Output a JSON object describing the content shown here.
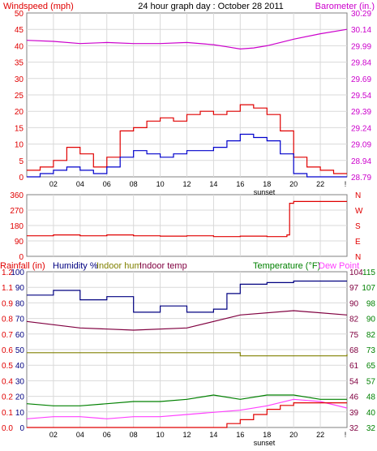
{
  "header": {
    "left_title": "Windspeed (mph)",
    "center_title": "24 hour graph day : October 28 2011",
    "right_title": "Barometer (in.)"
  },
  "colors": {
    "frame": "#808080",
    "grid": "#d9d9d9",
    "red": "#e00000",
    "blue": "#0000cc",
    "magenta": "#cc00cc",
    "maroon": "#800040",
    "olive": "#808000",
    "green": "#008000",
    "pink": "#ff40ff",
    "navy": "#000080",
    "teal": "#008080"
  },
  "x_axis": {
    "ticks": [
      "02",
      "04",
      "06",
      "08",
      "10",
      "12",
      "14",
      "16",
      "18",
      "20",
      "22"
    ],
    "sunset_label": "sunset",
    "end_mark": "!"
  },
  "top_panel": {
    "left_ticks": [
      "50",
      "45",
      "40",
      "35",
      "30",
      "25",
      "20",
      "15",
      "10",
      "5",
      "0"
    ],
    "right_ticks": [
      "30.29",
      "30.14",
      "29.99",
      "29.84",
      "29.69",
      "29.54",
      "29.39",
      "29.24",
      "29.09",
      "28.94",
      "28.79"
    ]
  },
  "wind_panel": {
    "left_ticks": [
      "360",
      "270",
      "180",
      "90",
      "0"
    ],
    "right_labels": [
      "N",
      "W",
      "S",
      "E",
      "N"
    ]
  },
  "bottom_panel": {
    "header_rainfall": "Rainfall (in)",
    "header_humidity": "Humidity %",
    "header_indoor_hum": "Indoor hum",
    "header_indoor_temp": "Indoor temp",
    "header_temperature": "Temperature (°F)",
    "header_dew_point": "Dew Point",
    "rain_ticks": [
      "1.2",
      "1.1",
      "0.9",
      "0.8",
      "0.7",
      "0.6",
      "0.5",
      "0.4",
      "0.2",
      "0.1",
      "0.0"
    ],
    "humidity_ticks": [
      "100",
      "90",
      "80",
      "70",
      "60",
      "50",
      "40",
      "30",
      "20",
      "10",
      "0"
    ],
    "temp_right1_ticks": [
      "104",
      "97",
      "90",
      "82",
      "75",
      "68",
      "61",
      "54",
      "46",
      "39",
      "32"
    ],
    "temp_right2_ticks": [
      "115",
      "107",
      "98",
      "90",
      "82",
      "73",
      "65",
      "57",
      "48",
      "40",
      "32"
    ]
  },
  "chart_data": [
    {
      "type": "line",
      "title": "24 hour graph day : October 28 2011",
      "x_ticks": [
        "02",
        "04",
        "06",
        "08",
        "10",
        "12",
        "14",
        "16",
        "18",
        "20",
        "22"
      ],
      "y_left_label": "Windspeed (mph)",
      "y_left_range": [
        0,
        50
      ],
      "y_right_label": "Barometer (in.)",
      "y_right_range": [
        28.79,
        30.29
      ],
      "series": [
        {
          "name": "Windspeed (mph)",
          "color": "red",
          "axis": "left",
          "x": [
            0,
            1,
            2,
            3,
            4,
            5,
            6,
            7,
            8,
            9,
            10,
            11,
            12,
            13,
            14,
            15,
            16,
            17,
            18,
            19,
            20,
            21,
            22,
            23,
            24
          ],
          "values": [
            2,
            3,
            5,
            9,
            7,
            3,
            6,
            14,
            15,
            17,
            18,
            17,
            19,
            20,
            19,
            20,
            22,
            21,
            19,
            14,
            6,
            3,
            2,
            1,
            1
          ]
        },
        {
          "name": "Gust",
          "color": "blue",
          "axis": "left",
          "x": [
            0,
            1,
            2,
            3,
            4,
            5,
            6,
            7,
            8,
            9,
            10,
            11,
            12,
            13,
            14,
            15,
            16,
            17,
            18,
            19,
            20,
            21,
            22,
            23,
            24
          ],
          "values": [
            0,
            1,
            2,
            3,
            2,
            1,
            3,
            6,
            8,
            7,
            6,
            7,
            8,
            8,
            9,
            11,
            13,
            12,
            11,
            7,
            1,
            0,
            0,
            0,
            0
          ]
        },
        {
          "name": "Barometer (in.)",
          "color": "magenta",
          "axis": "right",
          "x": [
            0,
            2,
            4,
            6,
            8,
            10,
            12,
            14,
            15,
            16,
            17,
            18,
            19,
            20,
            22,
            24
          ],
          "values": [
            30.04,
            30.03,
            30.01,
            30.02,
            30.01,
            30.01,
            30.02,
            30.0,
            29.98,
            29.96,
            29.97,
            29.99,
            30.02,
            30.05,
            30.1,
            30.14
          ]
        }
      ]
    },
    {
      "type": "scatter",
      "title": "",
      "y_range": [
        0,
        360
      ],
      "y_ticks": [
        "360",
        "270",
        "180",
        "90",
        "0"
      ],
      "series": [
        {
          "name": "Wind direction",
          "color": "red",
          "x": [
            0,
            2,
            4,
            6,
            8,
            10,
            12,
            14,
            16,
            18,
            19.5,
            19.7,
            20,
            22,
            24
          ],
          "values": [
            120,
            125,
            120,
            125,
            120,
            118,
            120,
            115,
            118,
            115,
            125,
            310,
            320,
            320,
            320
          ]
        }
      ]
    },
    {
      "type": "line",
      "title": "",
      "y_left_label": "Rainfall (in)",
      "y_left_range": [
        0.0,
        1.2
      ],
      "y_right_label": "Temperature (°F)",
      "y_right_range": [
        32,
        104
      ],
      "series": [
        {
          "name": "Humidity %",
          "color": "navy",
          "axis": "humidity",
          "x": [
            0,
            2,
            4,
            6,
            8,
            10,
            12,
            14,
            15,
            16,
            18,
            20,
            24
          ],
          "values": [
            85,
            88,
            82,
            84,
            74,
            78,
            74,
            76,
            86,
            92,
            93,
            94,
            94
          ]
        },
        {
          "name": "Indoor hum",
          "color": "olive",
          "axis": "humidity",
          "x": [
            0,
            4,
            8,
            12,
            16,
            20,
            24
          ],
          "values": [
            48,
            48,
            48,
            48,
            46,
            46,
            47
          ]
        },
        {
          "name": "Indoor temp",
          "color": "maroon",
          "axis": "temp",
          "x": [
            0,
            4,
            8,
            12,
            16,
            20,
            24
          ],
          "values": [
            81,
            78,
            77,
            78,
            84,
            86,
            84
          ]
        },
        {
          "name": "Temperature (°F)",
          "color": "green",
          "axis": "temp",
          "x": [
            0,
            2,
            4,
            6,
            8,
            10,
            12,
            14,
            16,
            18,
            20,
            22,
            24
          ],
          "values": [
            43,
            42,
            42,
            43,
            44,
            44,
            45,
            47,
            45,
            47,
            47,
            45,
            45
          ]
        },
        {
          "name": "Dew Point",
          "color": "pink",
          "axis": "temp",
          "x": [
            0,
            2,
            4,
            6,
            8,
            10,
            12,
            14,
            16,
            18,
            20,
            22,
            24
          ],
          "values": [
            36,
            37,
            37,
            36,
            37,
            37,
            38,
            39,
            40,
            42,
            45,
            44,
            41
          ]
        },
        {
          "name": "Rainfall (in)",
          "color": "red",
          "axis": "rain",
          "x": [
            0,
            14,
            15,
            16,
            17,
            18,
            19,
            20,
            22,
            24
          ],
          "values": [
            0.0,
            0.0,
            0.03,
            0.06,
            0.1,
            0.14,
            0.17,
            0.19,
            0.19,
            0.19
          ]
        }
      ]
    }
  ]
}
